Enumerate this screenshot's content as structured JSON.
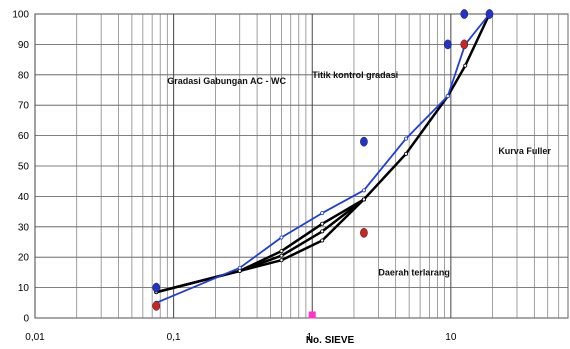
{
  "chart_data": {
    "type": "line",
    "x_scale": "log",
    "xlim": [
      0.01,
      70
    ],
    "ylim": [
      0,
      100
    ],
    "grid": true,
    "xlabel": "No. SIEVE",
    "x_ticks": [
      {
        "value": 0.01,
        "label": "0,01"
      },
      {
        "value": 0.1,
        "label": "0,1"
      },
      {
        "value": 1,
        "label": "1"
      },
      {
        "value": 10,
        "label": "10"
      }
    ],
    "y_ticks": [
      0,
      10,
      20,
      30,
      40,
      50,
      60,
      70,
      80,
      90,
      100
    ],
    "annotations": [
      {
        "text": "Gradasi Gabungan AC - WC",
        "x": 0.09,
        "y": 77
      },
      {
        "text": "Titik kontrol gradasi",
        "x": 1.0,
        "y": 79
      },
      {
        "text": "Kurva Fuller",
        "x": 22,
        "y": 54
      },
      {
        "text": "Daerah terlarang",
        "x": 3.0,
        "y": 14
      }
    ],
    "series": [
      {
        "color": "#000000",
        "width": 2.5,
        "x": [
          0.075,
          0.3,
          0.6,
          1.18,
          2.36
        ],
        "y": [
          8.5,
          15.5,
          19,
          25.5,
          39
        ]
      },
      {
        "color": "#000000",
        "width": 2.5,
        "x": [
          0.075,
          0.3,
          0.6,
          1.18,
          2.36
        ],
        "y": [
          8.5,
          15.5,
          20.5,
          28.5,
          39
        ]
      },
      {
        "color": "#000000",
        "width": 2.5,
        "x": [
          0.075,
          0.3,
          0.6,
          1.18,
          2.36
        ],
        "y": [
          8.5,
          15.5,
          22,
          31,
          39
        ]
      },
      {
        "color": "#000000",
        "width": 2.5,
        "x": [
          2.36,
          4.75,
          9.5,
          12.7,
          19
        ],
        "y": [
          39,
          54,
          73,
          83,
          100
        ]
      },
      {
        "color": "#1f3fd6",
        "width": 1.8,
        "x": [
          0.075,
          0.3,
          0.6,
          1.18,
          2.36,
          4.75,
          9.5,
          12.7,
          19
        ],
        "y": [
          5,
          16.5,
          26.5,
          34.5,
          42,
          59,
          73,
          90,
          100
        ]
      }
    ],
    "scatter": [
      {
        "color": "#2233cc",
        "x": 0.075,
        "y": 10
      },
      {
        "color": "#cc2222",
        "x": 0.075,
        "y": 4
      },
      {
        "color": "#2233cc",
        "x": 2.36,
        "y": 58
      },
      {
        "color": "#cc2222",
        "x": 2.36,
        "y": 28
      },
      {
        "color": "#2233cc",
        "x": 9.5,
        "y": 90
      },
      {
        "color": "#2233cc",
        "x": 12.5,
        "y": 100
      },
      {
        "color": "#cc2222",
        "x": 12.5,
        "y": 90
      },
      {
        "color": "#2233cc",
        "x": 19,
        "y": 100
      }
    ],
    "markers": [
      {
        "color": "#ff33cc",
        "x": 1.0,
        "y": 1
      }
    ]
  }
}
